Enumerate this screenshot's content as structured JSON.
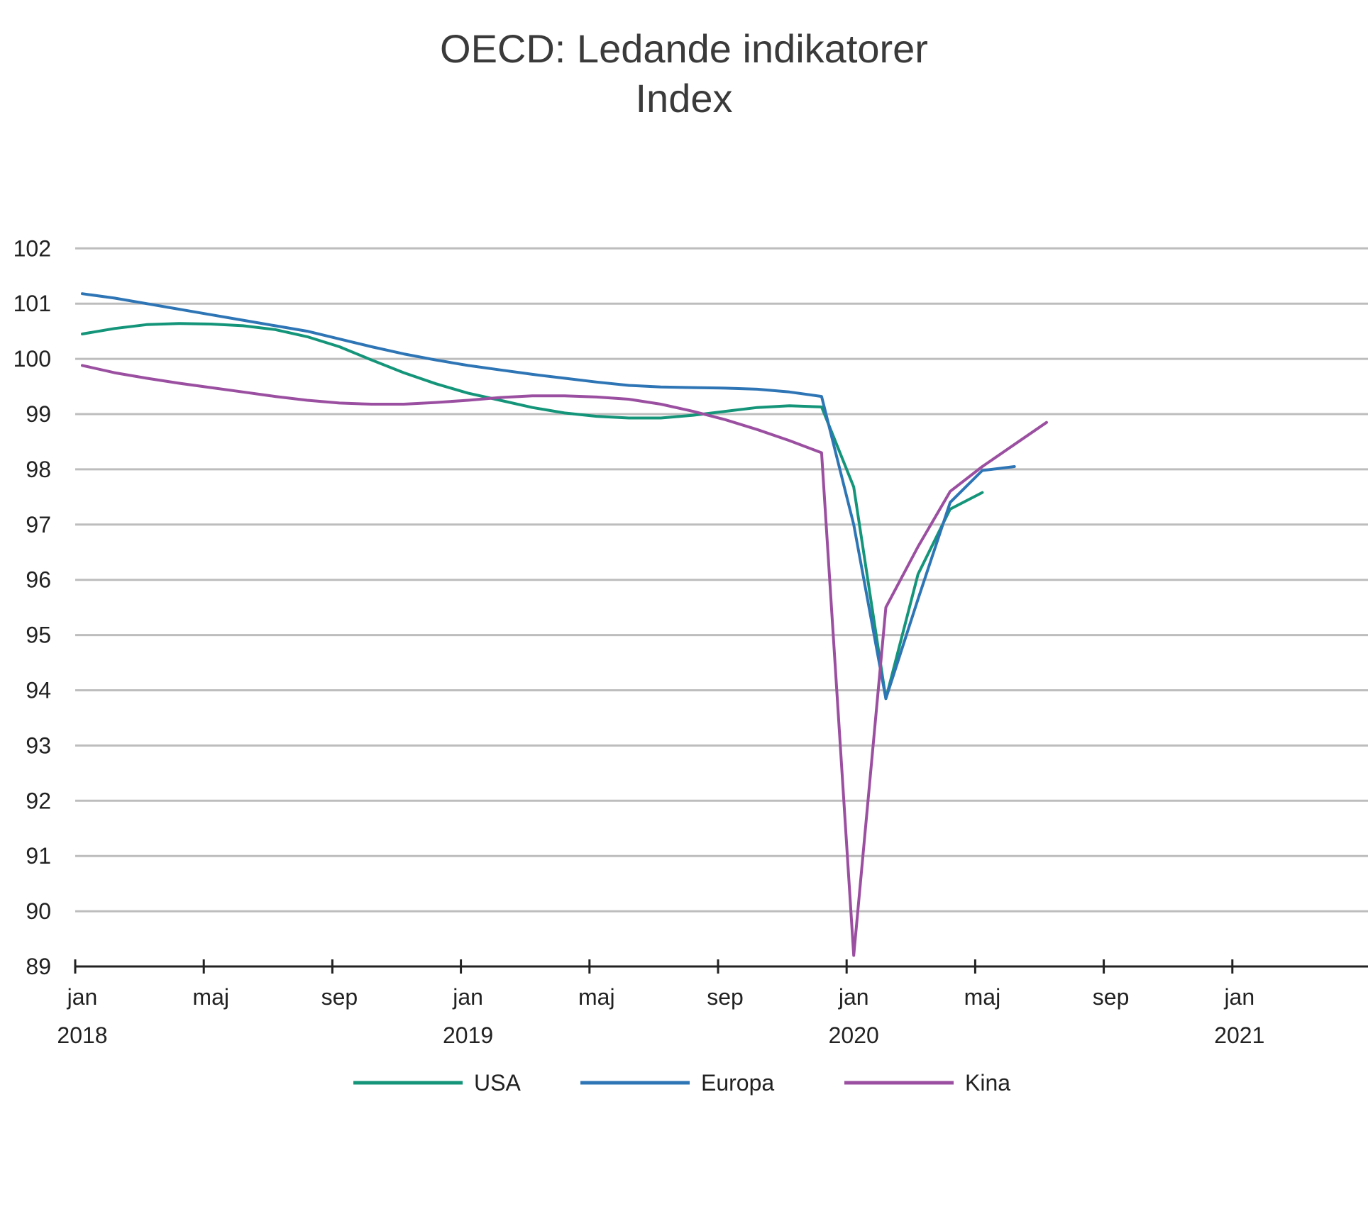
{
  "chart_data": {
    "type": "line",
    "title": "OECD: Ledande indikatorer",
    "subtitle": "Index",
    "xlabel": "",
    "ylabel": "",
    "ylim": [
      89,
      102
    ],
    "yticks": [
      89,
      90,
      91,
      92,
      93,
      94,
      95,
      96,
      97,
      98,
      99,
      100,
      101,
      102
    ],
    "x_ticks": [
      {
        "month": "jan",
        "year": "2018"
      },
      {
        "month": "maj",
        "year": ""
      },
      {
        "month": "sep",
        "year": ""
      },
      {
        "month": "jan",
        "year": "2019"
      },
      {
        "month": "maj",
        "year": ""
      },
      {
        "month": "sep",
        "year": ""
      },
      {
        "month": "jan",
        "year": "2020"
      },
      {
        "month": "maj",
        "year": ""
      },
      {
        "month": "sep",
        "year": ""
      },
      {
        "month": "jan",
        "year": "2021"
      }
    ],
    "x": [
      "2018-01",
      "2018-02",
      "2018-03",
      "2018-04",
      "2018-05",
      "2018-06",
      "2018-07",
      "2018-08",
      "2018-09",
      "2018-10",
      "2018-11",
      "2018-12",
      "2019-01",
      "2019-02",
      "2019-03",
      "2019-04",
      "2019-05",
      "2019-06",
      "2019-07",
      "2019-08",
      "2019-09",
      "2019-10",
      "2019-11",
      "2019-12",
      "2020-01",
      "2020-02",
      "2020-03",
      "2020-04",
      "2020-05",
      "2020-06",
      "2020-07",
      "2020-08",
      "2020-09",
      "2020-10",
      "2020-11"
    ],
    "grid": true,
    "legend_position": "bottom",
    "series": [
      {
        "name": "USA",
        "color": "#14957a",
        "values": [
          100.45,
          100.55,
          100.62,
          100.64,
          100.63,
          100.6,
          100.53,
          100.4,
          100.22,
          99.98,
          99.75,
          99.55,
          99.38,
          99.25,
          99.12,
          99.02,
          98.96,
          98.93,
          98.93,
          98.98,
          99.05,
          99.12,
          99.15,
          99.13,
          97.68,
          93.85,
          96.1,
          97.28,
          97.58,
          null,
          null,
          null,
          null,
          null,
          null
        ]
      },
      {
        "name": "Europa",
        "color": "#2e75b6",
        "values": [
          101.18,
          101.1,
          101.0,
          100.9,
          100.8,
          100.7,
          100.6,
          100.5,
          100.36,
          100.22,
          100.09,
          99.98,
          99.88,
          99.8,
          99.72,
          99.65,
          99.58,
          99.52,
          99.49,
          99.48,
          99.47,
          99.45,
          99.4,
          99.32,
          97.0,
          93.85,
          95.65,
          97.4,
          97.98,
          98.05,
          null,
          null,
          null,
          null,
          null
        ]
      },
      {
        "name": "Kina",
        "color": "#9b4fa0",
        "values": [
          99.88,
          99.75,
          99.65,
          99.56,
          99.48,
          99.4,
          99.32,
          99.25,
          99.2,
          99.18,
          99.18,
          99.21,
          99.25,
          99.3,
          99.33,
          99.33,
          99.31,
          99.27,
          99.18,
          99.05,
          98.9,
          98.72,
          98.52,
          98.3,
          89.2,
          95.5,
          96.6,
          97.6,
          98.05,
          98.45,
          98.85,
          null,
          null,
          null,
          null
        ]
      }
    ]
  }
}
